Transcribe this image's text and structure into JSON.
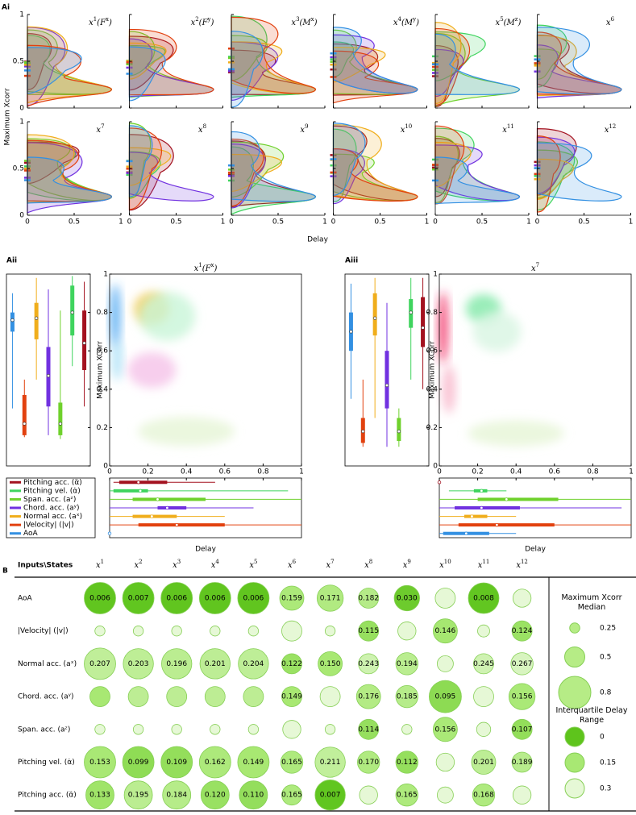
{
  "chart_data": [
    {
      "type": "violin_grid",
      "panel_label": "Ai",
      "xlabel": "Delay",
      "ylabel": "Maximum Xcorr",
      "xlim": [
        0,
        1
      ],
      "ylim": [
        0,
        1
      ],
      "xticks": [
        0,
        0.5,
        1
      ],
      "yticks": [
        0,
        0.5,
        1
      ],
      "panels": [
        [
          {
            "text": "x"
          },
          {
            "text": "1",
            "sup": true
          },
          {
            "text": "(F"
          },
          {
            "text": "x",
            "sup": true
          },
          {
            "text": ")"
          }
        ],
        [
          {
            "text": "x"
          },
          {
            "text": "2",
            "sup": true
          },
          {
            "text": "(F"
          },
          {
            "text": "y",
            "sup": true
          },
          {
            "text": ")"
          }
        ],
        [
          {
            "text": "x"
          },
          {
            "text": "3",
            "sup": true
          },
          {
            "text": "(M"
          },
          {
            "text": "x",
            "sup": true
          },
          {
            "text": ")"
          }
        ],
        [
          {
            "text": "x"
          },
          {
            "text": "4",
            "sup": true
          },
          {
            "text": "(M"
          },
          {
            "text": "y",
            "sup": true
          },
          {
            "text": ")"
          }
        ],
        [
          {
            "text": "x"
          },
          {
            "text": "5",
            "sup": true
          },
          {
            "text": "(M"
          },
          {
            "text": "z",
            "sup": true
          },
          {
            "text": ")"
          }
        ],
        [
          {
            "text": "x"
          },
          {
            "text": "6",
            "sup": true
          }
        ],
        [
          {
            "text": "x"
          },
          {
            "text": "7",
            "sup": true
          }
        ],
        [
          {
            "text": "x"
          },
          {
            "text": "8",
            "sup": true
          }
        ],
        [
          {
            "text": "x"
          },
          {
            "text": "9",
            "sup": true
          }
        ],
        [
          {
            "text": "x"
          },
          {
            "text": "10",
            "sup": true
          }
        ],
        [
          {
            "text": "x"
          },
          {
            "text": "11",
            "sup": true
          }
        ],
        [
          {
            "text": "x"
          },
          {
            "text": "12",
            "sup": true
          }
        ]
      ]
    },
    {
      "type": "box_scatter",
      "panel_label": "Aii",
      "title": [
        {
          "text": "x"
        },
        {
          "text": "1",
          "sup": true
        },
        {
          "text": "(F"
        },
        {
          "text": "x",
          "sup": true
        },
        {
          "text": ")"
        }
      ],
      "xlabel": "Delay",
      "ylabel": "Maximum XCorr",
      "xlim": [
        0,
        1
      ],
      "ylim": [
        0,
        1
      ],
      "xticks": [
        0,
        0.2,
        0.4,
        0.6,
        0.8,
        1
      ],
      "yticks": [
        0,
        0.2,
        0.4,
        0.6,
        0.8,
        1
      ],
      "series": [
        {
          "name": "Pitching acc. (α̈)",
          "color": "#a3111f",
          "xcorr": {
            "low": 0.31,
            "q1": 0.5,
            "median": 0.64,
            "q3": 0.81,
            "high": 0.96
          },
          "delay": {
            "low": 0.02,
            "q1": 0.05,
            "median": 0.15,
            "q3": 0.3,
            "high": 0.55
          }
        },
        {
          "name": "Pitching vel. (α̇)",
          "color": "#3fd45e",
          "xcorr": {
            "low": 0.52,
            "q1": 0.68,
            "median": 0.8,
            "q3": 0.94,
            "high": 0.99
          },
          "delay": {
            "low": 0,
            "q1": 0.02,
            "median": 0.16,
            "q3": 0.2,
            "high": 0.93
          }
        },
        {
          "name": "Span. acc. (aᶻ)",
          "color": "#6fd12c",
          "xcorr": {
            "low": 0.14,
            "q1": 0.16,
            "median": 0.22,
            "q3": 0.33,
            "high": 0.81
          },
          "delay": {
            "low": 0,
            "q1": 0.12,
            "median": 0.25,
            "q3": 0.5,
            "high": 1
          }
        },
        {
          "name": "Chord. acc. (aʸ)",
          "color": "#7131e0",
          "xcorr": {
            "low": 0.16,
            "q1": 0.31,
            "median": 0.47,
            "q3": 0.62,
            "high": 0.92
          },
          "delay": {
            "low": 0,
            "q1": 0.25,
            "median": 0.3,
            "q3": 0.4,
            "high": 0.75
          }
        },
        {
          "name": "Normal acc. (aˣ)",
          "color": "#f0ae1c",
          "xcorr": {
            "low": 0.45,
            "q1": 0.66,
            "median": 0.77,
            "q3": 0.85,
            "high": 0.98
          },
          "delay": {
            "low": 0,
            "q1": 0.12,
            "median": 0.22,
            "q3": 0.35,
            "high": 0.6
          }
        },
        {
          "name": "|Velocity| (|v|)",
          "color": "#e2410f",
          "xcorr": {
            "low": 0.15,
            "q1": 0.16,
            "median": 0.22,
            "q3": 0.37,
            "high": 0.45
          },
          "delay": {
            "low": 0,
            "q1": 0.15,
            "median": 0.35,
            "q3": 0.6,
            "high": 1
          }
        },
        {
          "name": "AoA",
          "color": "#3390e2",
          "xcorr": {
            "low": 0.3,
            "q1": 0.7,
            "median": 0.76,
            "q3": 0.8,
            "high": 0.9
          },
          "delay": {
            "low": 0,
            "q1": 0,
            "median": 0,
            "q3": 0,
            "high": 0
          }
        }
      ]
    },
    {
      "type": "box_scatter",
      "panel_label": "Aiii",
      "title": [
        {
          "text": "x"
        },
        {
          "text": "7",
          "sup": true
        }
      ],
      "xlabel": "Delay",
      "ylabel": "Maximum XCorr",
      "xlim": [
        0,
        1
      ],
      "ylim": [
        0,
        1
      ],
      "xticks": [
        0,
        0.2,
        0.4,
        0.6,
        0.8,
        1
      ],
      "yticks": [
        0,
        0.2,
        0.4,
        0.6,
        0.8,
        1
      ],
      "series": [
        {
          "color": "#a3111f",
          "xcorr": {
            "low": 0.4,
            "q1": 0.62,
            "median": 0.72,
            "q3": 0.88,
            "high": 0.98
          },
          "delay": {
            "low": 0,
            "q1": 0,
            "median": 0,
            "q3": 0,
            "high": 0
          }
        },
        {
          "color": "#3fd45e",
          "xcorr": {
            "low": 0.45,
            "q1": 0.72,
            "median": 0.8,
            "q3": 0.87,
            "high": 0.98
          },
          "delay": {
            "low": 0.05,
            "q1": 0.18,
            "median": 0.22,
            "q3": 0.25,
            "high": 0.35
          }
        },
        {
          "color": "#6fd12c",
          "xcorr": {
            "low": 0.1,
            "q1": 0.13,
            "median": 0.18,
            "q3": 0.25,
            "high": 0.3
          },
          "delay": {
            "low": 0,
            "q1": 0.2,
            "median": 0.35,
            "q3": 0.62,
            "high": 1
          }
        },
        {
          "color": "#7131e0",
          "xcorr": {
            "low": 0.1,
            "q1": 0.3,
            "median": 0.42,
            "q3": 0.6,
            "high": 0.85
          },
          "delay": {
            "low": 0,
            "q1": 0.08,
            "median": 0.22,
            "q3": 0.42,
            "high": 0.95
          }
        },
        {
          "color": "#f0ae1c",
          "xcorr": {
            "low": 0.25,
            "q1": 0.68,
            "median": 0.77,
            "q3": 0.9,
            "high": 0.98
          },
          "delay": {
            "low": 0,
            "q1": 0.13,
            "median": 0.17,
            "q3": 0.25,
            "high": 0.4
          }
        },
        {
          "color": "#e2410f",
          "xcorr": {
            "low": 0.1,
            "q1": 0.12,
            "median": 0.18,
            "q3": 0.25,
            "high": 0.45
          },
          "delay": {
            "low": 0,
            "q1": 0.1,
            "median": 0.3,
            "q3": 0.6,
            "high": 1
          }
        },
        {
          "color": "#3390e2",
          "xcorr": {
            "low": 0.35,
            "q1": 0.6,
            "median": 0.7,
            "q3": 0.8,
            "high": 0.95
          },
          "delay": {
            "low": 0,
            "q1": 0.02,
            "median": 0.14,
            "q3": 0.26,
            "high": 0.4
          }
        }
      ]
    },
    {
      "type": "bubble_table",
      "panel_label": "B",
      "corner": "Inputs\\States",
      "columns": [
        [
          {
            "text": "x"
          },
          {
            "text": "1",
            "sup": true
          }
        ],
        [
          {
            "text": "x"
          },
          {
            "text": "2",
            "sup": true
          }
        ],
        [
          {
            "text": "x"
          },
          {
            "text": "3",
            "sup": true
          }
        ],
        [
          {
            "text": "x"
          },
          {
            "text": "4",
            "sup": true
          }
        ],
        [
          {
            "text": "x"
          },
          {
            "text": "5",
            "sup": true
          }
        ],
        [
          {
            "text": "x"
          },
          {
            "text": "6",
            "sup": true
          }
        ],
        [
          {
            "text": "x"
          },
          {
            "text": "7",
            "sup": true
          }
        ],
        [
          {
            "text": "x"
          },
          {
            "text": "8",
            "sup": true
          }
        ],
        [
          {
            "text": "x"
          },
          {
            "text": "9",
            "sup": true
          }
        ],
        [
          {
            "text": "x"
          },
          {
            "text": "10",
            "sup": true
          }
        ],
        [
          {
            "text": "x"
          },
          {
            "text": "11",
            "sup": true
          }
        ],
        [
          {
            "text": "x"
          },
          {
            "text": "12",
            "sup": true
          }
        ]
      ],
      "rows": [
        {
          "name": "AoA",
          "median": [
            0.78,
            0.78,
            0.78,
            0.78,
            0.78,
            0.6,
            0.65,
            0.5,
            0.63,
            0.5,
            0.76,
            0.45
          ],
          "iqr": [
            0.006,
            0.007,
            0.006,
            0.006,
            0.006,
            0.159,
            0.171,
            0.182,
            0.03,
            0.3,
            0.008,
            0.3
          ],
          "value_labels": [
            "0.006",
            "0.007",
            "0.006",
            "0.006",
            "0.006",
            "0.159",
            "0.171",
            "0.182",
            "0.030",
            null,
            "0.008",
            null
          ]
        },
        {
          "name": "|Velocity| (|v|)",
          "median": [
            0.25,
            0.25,
            0.25,
            0.25,
            0.25,
            0.5,
            0.25,
            0.5,
            0.45,
            0.6,
            0.3,
            0.5
          ],
          "iqr": [
            0.3,
            0.3,
            0.3,
            0.3,
            0.3,
            0.3,
            0.3,
            0.115,
            0.3,
            0.146,
            0.3,
            0.124
          ],
          "value_labels": [
            null,
            null,
            null,
            null,
            null,
            null,
            null,
            "0.115",
            null,
            "0.146",
            null,
            "0.124"
          ]
        },
        {
          "name": "Normal acc. (aˣ)",
          "median": [
            0.78,
            0.75,
            0.75,
            0.75,
            0.75,
            0.5,
            0.6,
            0.5,
            0.55,
            0.4,
            0.5,
            0.55
          ],
          "iqr": [
            0.207,
            0.203,
            0.196,
            0.201,
            0.204,
            0.122,
            0.15,
            0.243,
            0.194,
            0.3,
            0.245,
            0.267
          ],
          "value_labels": [
            "0.207",
            "0.203",
            "0.196",
            "0.201",
            "0.204",
            "0.122",
            "0.150",
            "0.243",
            "0.194",
            null,
            "0.245",
            "0.267"
          ]
        },
        {
          "name": "Chord. acc. (aʸ)",
          "median": [
            0.5,
            0.5,
            0.5,
            0.5,
            0.5,
            0.5,
            0.5,
            0.6,
            0.55,
            0.8,
            0.5,
            0.65
          ],
          "iqr": [
            0.15,
            0.2,
            0.2,
            0.2,
            0.2,
            0.149,
            0.3,
            0.176,
            0.185,
            0.095,
            0.3,
            0.156
          ],
          "value_labels": [
            null,
            null,
            null,
            null,
            null,
            "0.149",
            null,
            "0.176",
            "0.185",
            "0.095",
            null,
            "0.156"
          ]
        },
        {
          "name": "Span. acc. (aᶻ)",
          "median": [
            0.25,
            0.25,
            0.25,
            0.25,
            0.25,
            0.45,
            0.25,
            0.5,
            0.25,
            0.6,
            0.35,
            0.5
          ],
          "iqr": [
            0.3,
            0.3,
            0.3,
            0.3,
            0.3,
            0.3,
            0.3,
            0.114,
            0.3,
            0.156,
            0.3,
            0.107
          ],
          "value_labels": [
            null,
            null,
            null,
            null,
            null,
            null,
            null,
            "0.114",
            null,
            "0.156",
            null,
            "0.107"
          ]
        },
        {
          "name": "Pitching vel. (α̇)",
          "median": [
            0.78,
            0.78,
            0.78,
            0.78,
            0.78,
            0.55,
            0.75,
            0.55,
            0.55,
            0.45,
            0.6,
            0.5
          ],
          "iqr": [
            0.153,
            0.099,
            0.109,
            0.162,
            0.149,
            0.165,
            0.211,
            0.17,
            0.112,
            0.3,
            0.201,
            0.189
          ],
          "value_labels": [
            "0.153",
            "0.099",
            "0.109",
            "0.162",
            "0.149",
            "0.165",
            "0.211",
            "0.170",
            "0.112",
            null,
            "0.201",
            "0.189"
          ]
        },
        {
          "name": "Pitching acc. (α̈)",
          "median": [
            0.7,
            0.7,
            0.7,
            0.7,
            0.7,
            0.5,
            0.75,
            0.45,
            0.55,
            0.4,
            0.55,
            0.45
          ],
          "iqr": [
            0.133,
            0.195,
            0.184,
            0.12,
            0.11,
            0.165,
            0.007,
            0.3,
            0.165,
            0.3,
            0.168,
            0.3
          ],
          "value_labels": [
            "0.133",
            "0.195",
            "0.184",
            "0.120",
            "0.110",
            "0.165",
            "0.007",
            null,
            "0.165",
            null,
            "0.168",
            null
          ]
        }
      ],
      "size_legend": {
        "title": "Maximum Xcorr Median",
        "values": [
          0.25,
          0.5,
          0.8
        ]
      },
      "color_legend": {
        "title": "Interquartile Delay Range",
        "values": [
          0,
          0.15,
          0.3
        ]
      }
    }
  ]
}
